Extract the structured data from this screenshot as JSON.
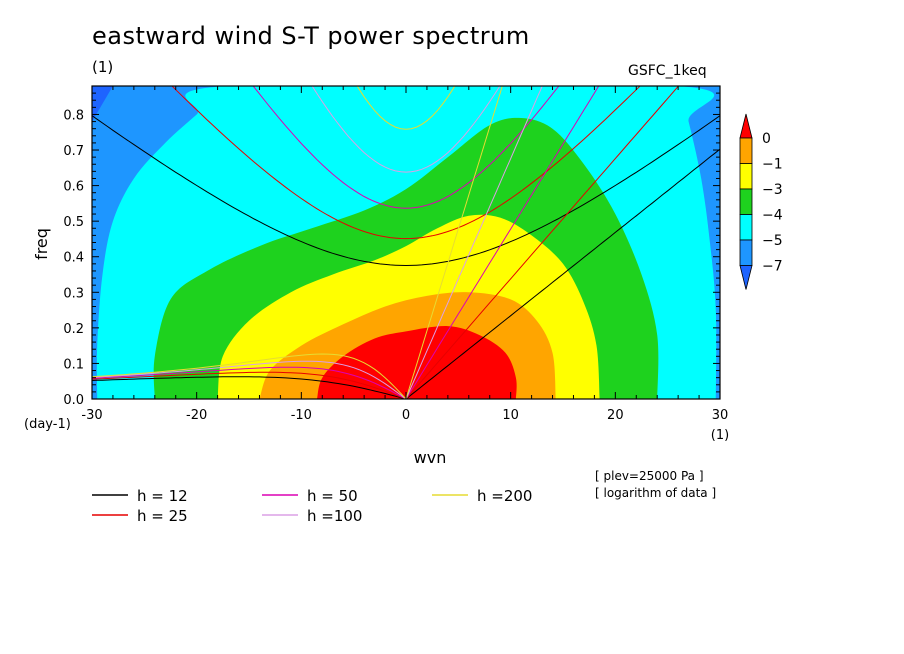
{
  "chart_data": {
    "type": "heatmap",
    "title": "eastward wind S-T power spectrum",
    "subtitle": "(1)",
    "model_label": "GSFC_1keq",
    "xlabel": "wvn",
    "x_unit": "(1)",
    "ylabel": "freq",
    "y_unit": "(day-1)",
    "xlim": [
      -30,
      30
    ],
    "ylim": [
      0,
      0.88
    ],
    "x_ticks": [
      "-30",
      "-20",
      "-10",
      "0",
      "10",
      "20",
      "30"
    ],
    "x_tick_values": [
      -30,
      -20,
      -10,
      0,
      10,
      20,
      30
    ],
    "y_ticks": [
      "0.0",
      "0.1",
      "0.2",
      "0.3",
      "0.4",
      "0.5",
      "0.6",
      "0.7",
      "0.8"
    ],
    "y_tick_values": [
      0,
      0.1,
      0.2,
      0.3,
      0.4,
      0.5,
      0.6,
      0.7,
      0.8
    ],
    "colorbar": {
      "labels": [
        "0",
        "−1",
        "−3",
        "−4",
        "−5",
        "−7"
      ],
      "colors": [
        "#ff0000",
        "#ffa500",
        "#ffff00",
        "#1ed21e",
        "#00ffff",
        "#1e96ff",
        "#1e64ff"
      ]
    },
    "contour_levels": [
      {
        "level": 0,
        "color": "#ff0000",
        "points": [
          [
            -8.5,
            0
          ],
          [
            -8,
            0.06
          ],
          [
            -6,
            0.12
          ],
          [
            -3,
            0.17
          ],
          [
            0,
            0.19
          ],
          [
            4,
            0.205
          ],
          [
            7,
            0.18
          ],
          [
            9.5,
            0.13
          ],
          [
            10.5,
            0.06
          ],
          [
            10.5,
            0
          ]
        ]
      },
      {
        "level": -1,
        "color": "#ffa500",
        "points": [
          [
            -14,
            0
          ],
          [
            -13,
            0.08
          ],
          [
            -10,
            0.15
          ],
          [
            -6,
            0.21
          ],
          [
            -2,
            0.26
          ],
          [
            2,
            0.29
          ],
          [
            6,
            0.3
          ],
          [
            10,
            0.28
          ],
          [
            12.5,
            0.22
          ],
          [
            14,
            0.13
          ],
          [
            14.3,
            0
          ]
        ]
      },
      {
        "level": -3,
        "color": "#ffff00",
        "points": [
          [
            -18,
            0
          ],
          [
            -17.5,
            0.12
          ],
          [
            -15,
            0.22
          ],
          [
            -11,
            0.3
          ],
          [
            -7,
            0.35
          ],
          [
            -3,
            0.39
          ],
          [
            0,
            0.43
          ],
          [
            3,
            0.48
          ],
          [
            6,
            0.515
          ],
          [
            9,
            0.51
          ],
          [
            12,
            0.46
          ],
          [
            15,
            0.38
          ],
          [
            17,
            0.27
          ],
          [
            18.2,
            0.15
          ],
          [
            18.5,
            0
          ]
        ]
      },
      {
        "level": -4,
        "color": "#1ed21e",
        "points": [
          [
            -24,
            0
          ],
          [
            -24,
            0.12
          ],
          [
            -22.5,
            0.28
          ],
          [
            -19,
            0.36
          ],
          [
            -14,
            0.43
          ],
          [
            -9,
            0.48
          ],
          [
            -4,
            0.53
          ],
          [
            0,
            0.59
          ],
          [
            4,
            0.68
          ],
          [
            8,
            0.77
          ],
          [
            11,
            0.79
          ],
          [
            14,
            0.76
          ],
          [
            17,
            0.66
          ],
          [
            20,
            0.52
          ],
          [
            22.5,
            0.35
          ],
          [
            24,
            0.18
          ],
          [
            24,
            0
          ]
        ]
      },
      {
        "level": -5,
        "color": "#00ffff",
        "points": [
          [
            -29.5,
            0
          ],
          [
            -29.5,
            0.15
          ],
          [
            -29,
            0.35
          ],
          [
            -28,
            0.5
          ],
          [
            -26,
            0.62
          ],
          [
            -23,
            0.72
          ],
          [
            -20,
            0.8
          ],
          [
            -17,
            0.88
          ],
          [
            26,
            0.88
          ],
          [
            27,
            0.78
          ],
          [
            28.2,
            0.62
          ],
          [
            29,
            0.45
          ],
          [
            29.6,
            0.25
          ],
          [
            29.6,
            0
          ]
        ]
      }
    ],
    "background_color": "#1e96ff",
    "corner_patch": {
      "color": "#1e64ff",
      "points": [
        [
          -30,
          0.78
        ],
        [
          -28,
          0.88
        ],
        [
          -30,
          0.88
        ]
      ]
    },
    "dispersion_curves": [
      {
        "name": "h = 12",
        "h": 12,
        "color": "#000000"
      },
      {
        "name": "h = 25",
        "h": 25,
        "color": "#e60000"
      },
      {
        "name": "h = 50",
        "h": 50,
        "color": "#dc00b4"
      },
      {
        "name": "h =100",
        "h": 100,
        "color": "#dca0e6"
      },
      {
        "name": "h =200",
        "h": 200,
        "color": "#e6dc32"
      }
    ],
    "annotations": [
      "[ plev=25000 Pa ]",
      "[ logarithm of data ]"
    ]
  }
}
